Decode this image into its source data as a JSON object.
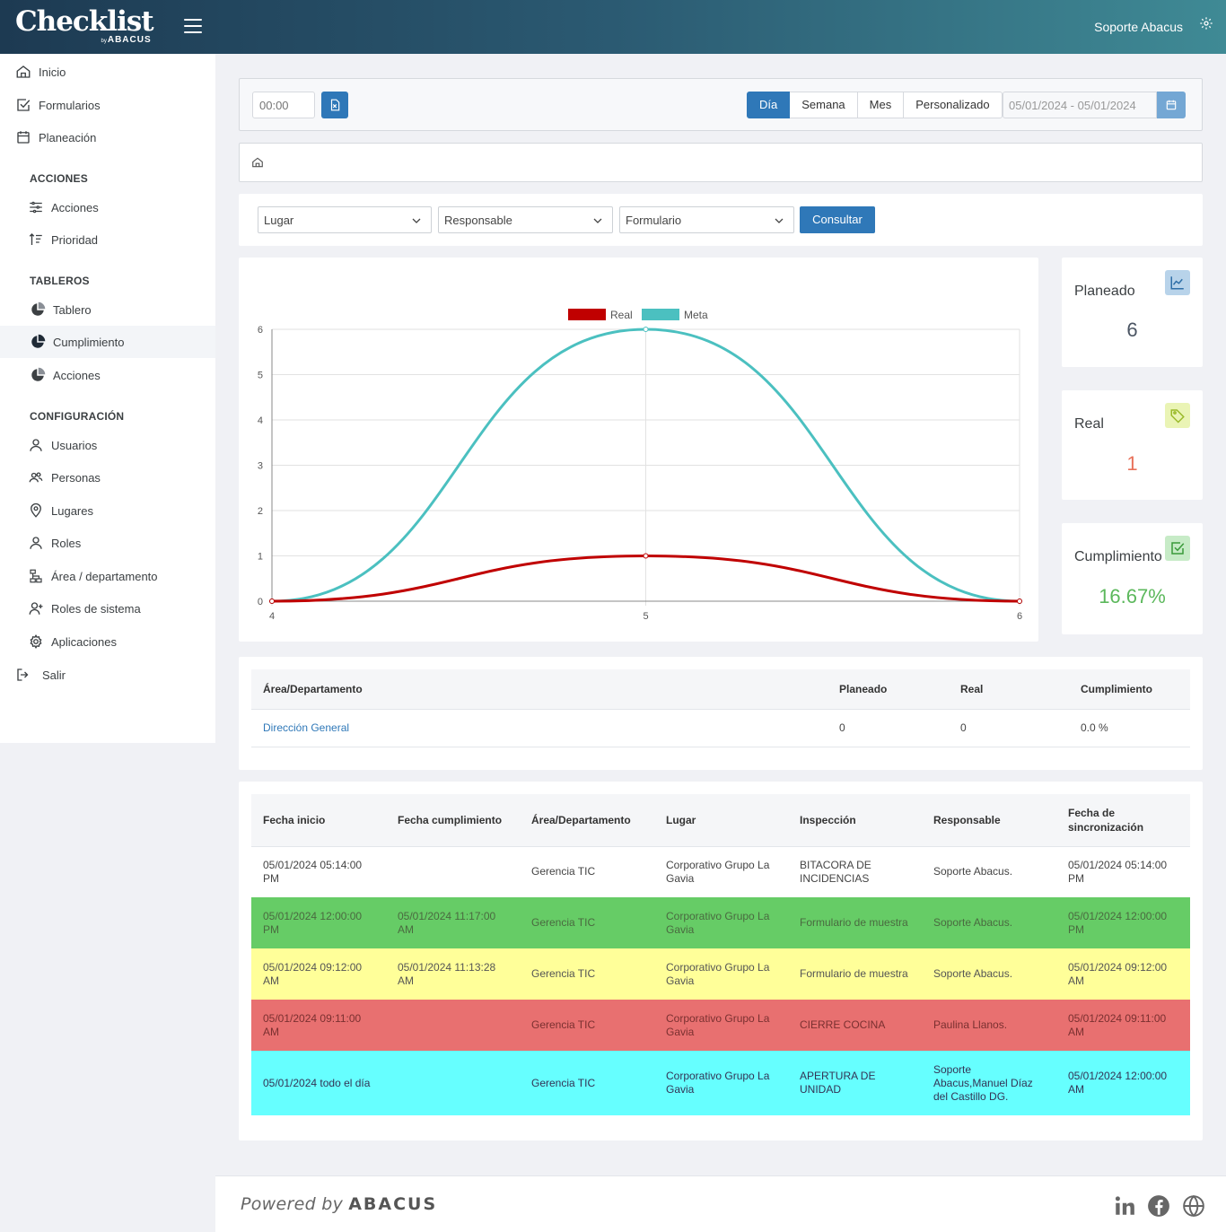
{
  "app": {
    "logo_text": "Checklist",
    "logo_by": "by",
    "logo_brand": "ABACUS",
    "user": "Soporte Abacus"
  },
  "sidebar": {
    "top": [
      "Inicio",
      "Formularios",
      "Planeación"
    ],
    "section_acciones": "ACCIONES",
    "acciones": [
      "Acciones",
      "Prioridad"
    ],
    "section_tableros": "TABLEROS",
    "tableros": [
      "Tablero",
      "Cumplimiento",
      "Acciones"
    ],
    "section_config": "CONFIGURACIÓN",
    "config": [
      "Usuarios",
      "Personas",
      "Lugares",
      "Roles",
      "Área / departamento",
      "Roles de sistema",
      "Aplicaciones"
    ],
    "logout": "Salir"
  },
  "toolbar": {
    "time_placeholder": "00:00",
    "periods": [
      "Día",
      "Semana",
      "Mes",
      "Personalizado"
    ],
    "active_period": "Día",
    "date_range": "05/01/2024 - 05/01/2024"
  },
  "filters": {
    "lugar": "Lugar",
    "responsable": "Responsable",
    "formulario": "Formulario",
    "consultar": "Consultar"
  },
  "chart_data": {
    "type": "line",
    "x": [
      4,
      5,
      6
    ],
    "series": [
      {
        "name": "Real",
        "values": [
          0,
          1,
          0
        ],
        "color": "#c00000"
      },
      {
        "name": "Meta",
        "values": [
          0,
          6,
          0
        ],
        "color": "#4bc0c0"
      }
    ],
    "xlim": [
      4,
      6
    ],
    "ylim": [
      0,
      6
    ],
    "yticks": [
      0,
      1,
      2,
      3,
      4,
      5,
      6
    ],
    "xticks": [
      4,
      5,
      6
    ],
    "legend": "top",
    "grid": true
  },
  "kpis": {
    "planeado": {
      "label": "Planeado",
      "value": "6"
    },
    "real": {
      "label": "Real",
      "value": "1"
    },
    "cumplimiento": {
      "label": "Cumplimiento",
      "value": "16.67%"
    }
  },
  "summary_table": {
    "headers": [
      "Área/Departamento",
      "Planeado",
      "Real",
      "Cumplimiento"
    ],
    "rows": [
      [
        "Dirección General",
        "0",
        "0",
        "0.0 %"
      ]
    ]
  },
  "detail_table": {
    "headers": [
      "Fecha inicio",
      "Fecha cumplimiento",
      "Área/Departamento",
      "Lugar",
      "Inspección",
      "Responsable",
      "Fecha de sincronización"
    ],
    "rows": [
      {
        "status": "white",
        "cells": [
          "05/01/2024 05:14:00 PM",
          "",
          "Gerencia TIC",
          "Corporativo Grupo La Gavia",
          "BITACORA DE INCIDENCIAS",
          "Soporte Abacus.",
          "05/01/2024 05:14:00 PM"
        ]
      },
      {
        "status": "green",
        "cells": [
          "05/01/2024 12:00:00 PM",
          "05/01/2024 11:17:00 AM",
          "Gerencia TIC",
          "Corporativo Grupo La Gavia",
          "Formulario de muestra",
          "Soporte Abacus.",
          "05/01/2024 12:00:00 PM"
        ]
      },
      {
        "status": "yellow",
        "cells": [
          "05/01/2024 09:12:00 AM",
          "05/01/2024 11:13:28 AM",
          "Gerencia TIC",
          "Corporativo Grupo La Gavia",
          "Formulario de muestra",
          "Soporte Abacus.",
          "05/01/2024 09:12:00 AM"
        ]
      },
      {
        "status": "red",
        "cells": [
          "05/01/2024 09:11:00 AM",
          "",
          "Gerencia TIC",
          "Corporativo Grupo La Gavia",
          "CIERRE COCINA",
          "Paulina Llanos.",
          "05/01/2024 09:11:00 AM"
        ]
      },
      {
        "status": "cyan",
        "cells": [
          "05/01/2024 todo el día",
          "",
          "Gerencia TIC",
          "Corporativo Grupo La Gavia",
          "APERTURA DE UNIDAD",
          "Soporte Abacus,Manuel Díaz del Castillo DG.",
          "05/01/2024 12:00:00 AM"
        ]
      }
    ]
  },
  "footer": {
    "powered": "Powered by",
    "brand": "ABACUS"
  },
  "colors": {
    "primary": "#2f78b8",
    "real": "#c00000",
    "meta": "#4bc0c0",
    "kpi_real": "#e8715a",
    "kpi_cumplimiento": "#5cb85c",
    "kpi_planeado": "#4b5563"
  }
}
